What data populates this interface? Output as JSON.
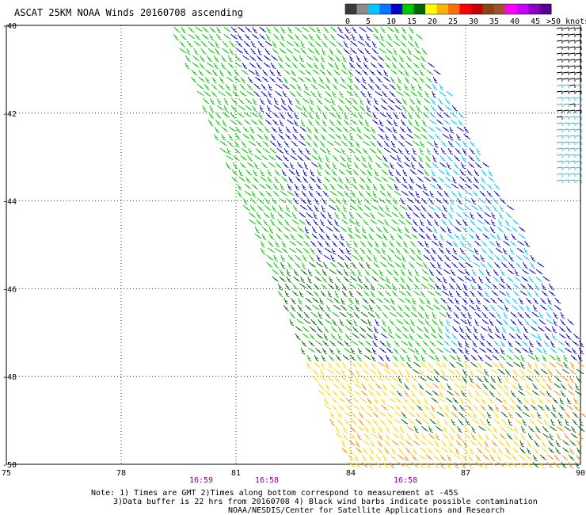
{
  "title": "ASCAT 25KM NOAA Winds 20160708 ascending",
  "legend": {
    "labels": [
      "0",
      "5",
      "10",
      "15",
      "20",
      "25",
      "30",
      "35",
      "40",
      "45",
      ">50 knots"
    ],
    "colors": [
      "#3a3a3a",
      "#8c8c8c",
      "#00c8ff",
      "#0078ff",
      "#0000c8",
      "#00c800",
      "#006400",
      "#ffff00",
      "#ffb400",
      "#ff6e00",
      "#ff0000",
      "#c80000",
      "#8b4513",
      "#a05030",
      "#ff00ff",
      "#c800ff",
      "#8c00c8",
      "#5a0096"
    ]
  },
  "axes": {
    "lat_labels": [
      "-40",
      "-42",
      "-44",
      "-46",
      "-48",
      "-50"
    ],
    "lon_labels": [
      "75",
      "78",
      "81",
      "84",
      "87",
      "90"
    ]
  },
  "times": {
    "values": [
      "16:59",
      "16:58",
      "16:58"
    ],
    "color": "#8b008b"
  },
  "notes": [
    "Note: 1) Times are GMT 2)Times along bottom correspond to measurement at -45S",
    "3)Data buffer is 22 hrs from 20160708 4) Black wind barbs indicate possible contamination",
    "NOAA/NESDIS/Center for Satellite Applications and Research"
  ],
  "barb_colors": {
    "low_wind": "#00c8ff",
    "mid_wind_blue": "#0000c8",
    "mid_wind_green": "#00c800",
    "dark_green": "#006400",
    "yellow": "#ffd700",
    "orange": "#ff8c00",
    "contaminated": "#000000"
  }
}
